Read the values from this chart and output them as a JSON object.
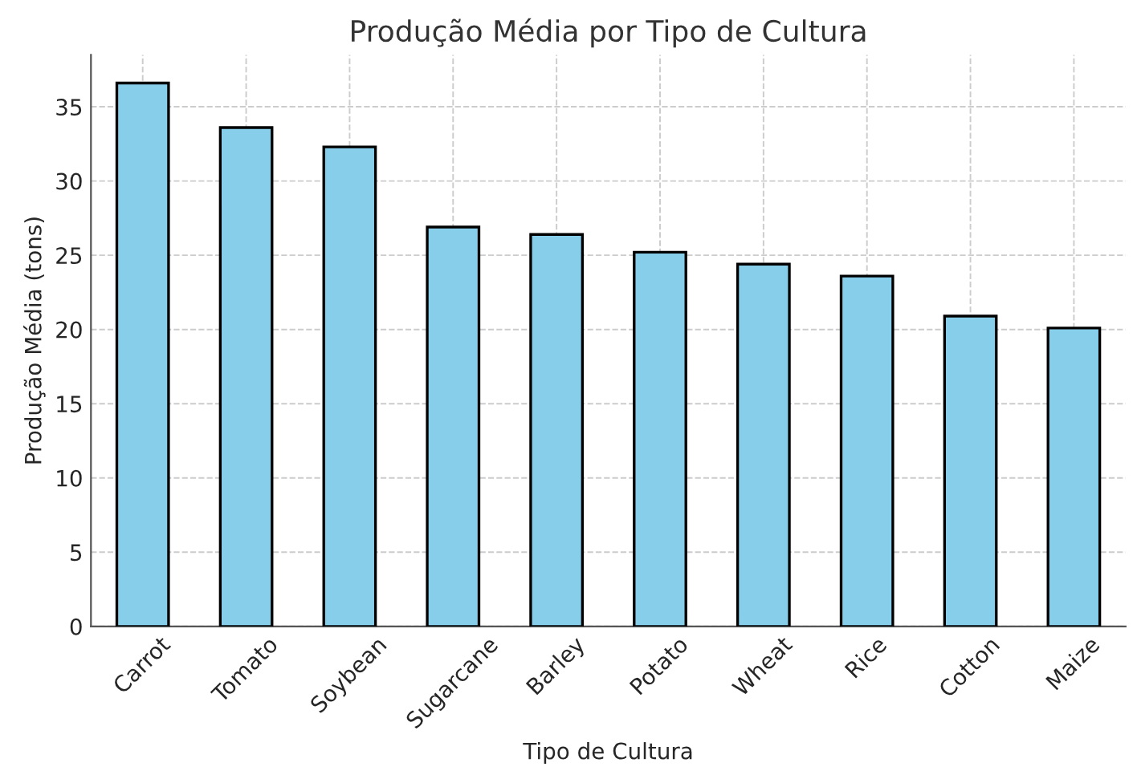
{
  "chart_data": {
    "type": "bar",
    "title": "Produção Média por Tipo de Cultura",
    "xlabel": "Tipo de Cultura",
    "ylabel": "Produção Média (tons)",
    "categories": [
      "Carrot",
      "Tomato",
      "Soybean",
      "Sugarcane",
      "Barley",
      "Potato",
      "Wheat",
      "Rice",
      "Cotton",
      "Maize"
    ],
    "values": [
      36.6,
      33.6,
      32.3,
      26.9,
      26.4,
      25.2,
      24.4,
      23.6,
      20.9,
      20.1
    ],
    "color": "#87ceeb",
    "ylim": [
      0,
      38.5
    ],
    "yticks": [
      0,
      5,
      10,
      15,
      20,
      25,
      30,
      35
    ],
    "grid": true
  }
}
